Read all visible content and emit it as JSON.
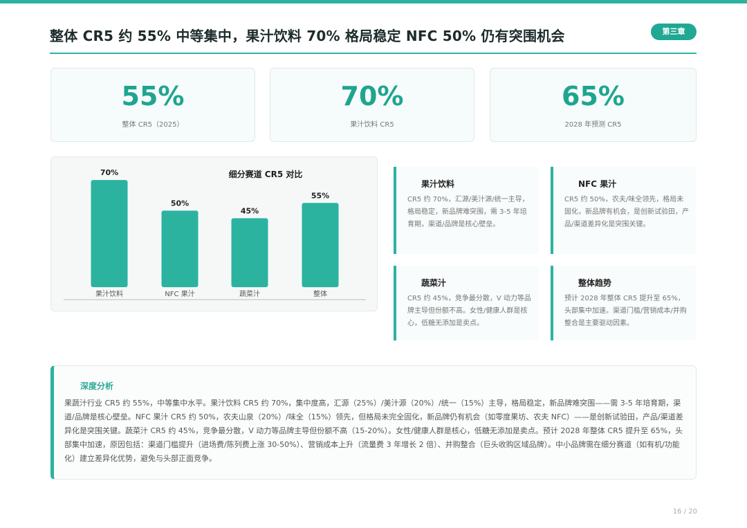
{
  "header": {
    "title": "整体 CR5 约 55% 中等集中，果汁饮料 70% 格局稳定 NFC 50% 仍有突围机会",
    "chapter_badge": "第三章"
  },
  "stats": [
    {
      "value": "55%",
      "label": "整体 CR5（2025）"
    },
    {
      "value": "70%",
      "label": "果汁饮料 CR5"
    },
    {
      "value": "65%",
      "label": "2028 年预测 CR5"
    }
  ],
  "chart_data": {
    "type": "bar",
    "title": "细分赛道 CR5 对比",
    "categories": [
      "果汁饮料",
      "NFC 果汁",
      "蔬菜汁",
      "整体"
    ],
    "values": [
      70,
      50,
      45,
      55
    ],
    "value_labels": [
      "70%",
      "50%",
      "45%",
      "55%"
    ],
    "ylim": [
      0,
      75
    ],
    "bar_color": "#2bb3a0",
    "grid": false
  },
  "segments": [
    {
      "title": "果汁饮料",
      "body": "CR5 约 70%，汇源/美汁源/统一主导，格局稳定，新品牌难突围，需 3-5 年培育期，渠道/品牌是核心壁垒。"
    },
    {
      "title": "NFC 果汁",
      "body": "CR5 约 50%，农夫/味全领先，格局未固化，新品牌有机会，是创新试验田，产品/渠道差异化是突围关键。"
    },
    {
      "title": "蔬菜汁",
      "body": "CR5 约 45%，竞争最分散，V 动力等品牌主导但份额不高。女性/健康人群是核心，低糖无添加是卖点。"
    },
    {
      "title": "整体趋势",
      "body": "预计 2028 年整体 CR5 提升至 65%，头部集中加速。渠道门槛/营销成本/并购整合是主要驱动因素。"
    }
  ],
  "analysis": {
    "title": "深度分析",
    "body": "果蔬汁行业 CR5 约 55%，中等集中水平。果汁饮料 CR5 约 70%，集中度高，汇源（25%）/美汁源（20%）/统一（15%）主导，格局稳定，新品牌难突围——需 3-5 年培育期，渠道/品牌是核心壁垒。NFC 果汁 CR5 约 50%，农夫山泉（20%）/味全（15%）领先，但格局未完全固化，新品牌仍有机会（如零度果坊、农夫 NFC）——是创新试验田，产品/渠道差异化是突围关键。蔬菜汁 CR5 约 45%，竞争最分散，V 动力等品牌主导但份额不高（15-20%）。女性/健康人群是核心，低糖无添加是卖点。预计 2028 年整体 CR5 提升至 65%，头部集中加速，原因包括：渠道门槛提升（进场费/陈列费上涨 30-50%）、营销成本上升（流量费 3 年增长 2 倍）、并购整合（巨头收购区域品牌）。中小品牌需在细分赛道（如有机/功能化）建立差异化优势，避免与头部正面竞争。"
  },
  "footer": {
    "page": "16 / 20"
  }
}
